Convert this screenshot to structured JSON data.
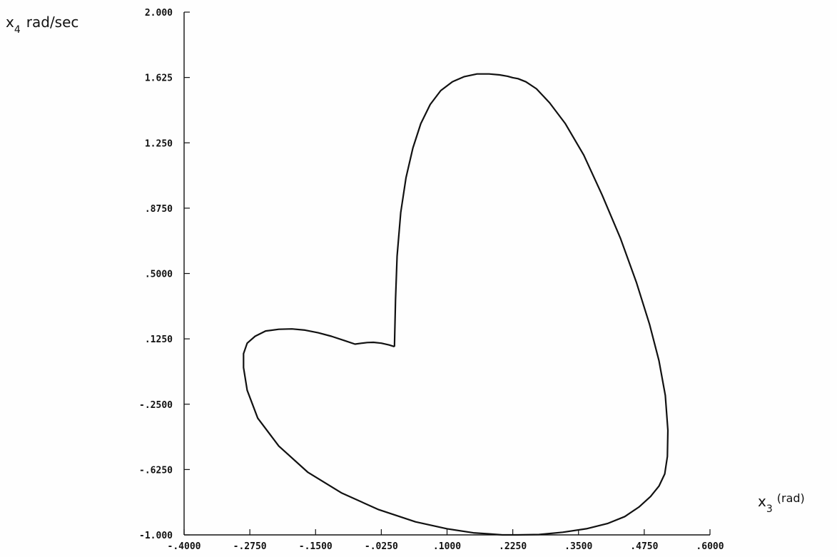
{
  "chart_data": {
    "type": "line",
    "title": "",
    "xlabel_main": "x",
    "xlabel_sub": "3",
    "xlabel_unit": "(rad)",
    "ylabel_main": "x",
    "ylabel_sub": "4",
    "ylabel_unit": "rad/sec",
    "xlim": [
      -0.4,
      0.6
    ],
    "ylim": [
      -1.0,
      2.0
    ],
    "x_ticks": [
      -0.4,
      -0.275,
      -0.15,
      -0.025,
      0.1,
      0.225,
      0.35,
      0.475,
      0.6
    ],
    "x_tick_labels": [
      "-.4000",
      "-.2750",
      "-.1500",
      "-.0250",
      ".1000",
      ".2250",
      ".3500",
      ".4750",
      ".6000"
    ],
    "y_ticks": [
      -1.0,
      -0.625,
      -0.25,
      0.125,
      0.5,
      0.875,
      1.25,
      1.625,
      2.0
    ],
    "y_tick_labels": [
      "-1.000",
      "-.6250",
      "-.2500",
      ".1250",
      ".5000",
      ".8750",
      "1.250",
      "1.625",
      "2.000"
    ],
    "grid": false,
    "series": [
      {
        "x": [
          0.0,
          0.002,
          0.005,
          0.012,
          0.022,
          0.035,
          0.05,
          0.068,
          0.088,
          0.11,
          0.133,
          0.157,
          0.18,
          0.2,
          0.215,
          0.225,
          0.235,
          0.25,
          0.27,
          0.295,
          0.325,
          0.36,
          0.395,
          0.43,
          0.46,
          0.485,
          0.503,
          0.515,
          0.52,
          0.519,
          0.514,
          0.503,
          0.487,
          0.465,
          0.438,
          0.405,
          0.365,
          0.32,
          0.275,
          0.235,
          0.205,
          0.185,
          0.15,
          0.1,
          0.04,
          -0.03,
          -0.1,
          -0.165,
          -0.22,
          -0.26,
          -0.28,
          -0.287,
          -0.287,
          -0.28,
          -0.265,
          -0.245,
          -0.22,
          -0.195,
          -0.17,
          -0.145,
          -0.12,
          -0.095,
          -0.075,
          -0.062,
          -0.052,
          -0.04,
          -0.025,
          -0.01,
          0.0
        ],
        "y": [
          0.08,
          0.35,
          0.6,
          0.85,
          1.05,
          1.22,
          1.36,
          1.47,
          1.55,
          1.6,
          1.63,
          1.645,
          1.645,
          1.64,
          1.632,
          1.624,
          1.618,
          1.6,
          1.56,
          1.48,
          1.36,
          1.18,
          0.95,
          0.7,
          0.45,
          0.21,
          0.0,
          -0.2,
          -0.4,
          -0.55,
          -0.65,
          -0.72,
          -0.78,
          -0.84,
          -0.895,
          -0.935,
          -0.965,
          -0.985,
          -0.998,
          -1.0,
          -1.0,
          -0.995,
          -0.988,
          -0.965,
          -0.925,
          -0.855,
          -0.76,
          -0.64,
          -0.49,
          -0.33,
          -0.17,
          -0.04,
          0.04,
          0.1,
          0.14,
          0.17,
          0.18,
          0.182,
          0.175,
          0.16,
          0.14,
          0.115,
          0.095,
          0.1,
          0.104,
          0.105,
          0.1,
          0.09,
          0.08
        ]
      }
    ]
  }
}
